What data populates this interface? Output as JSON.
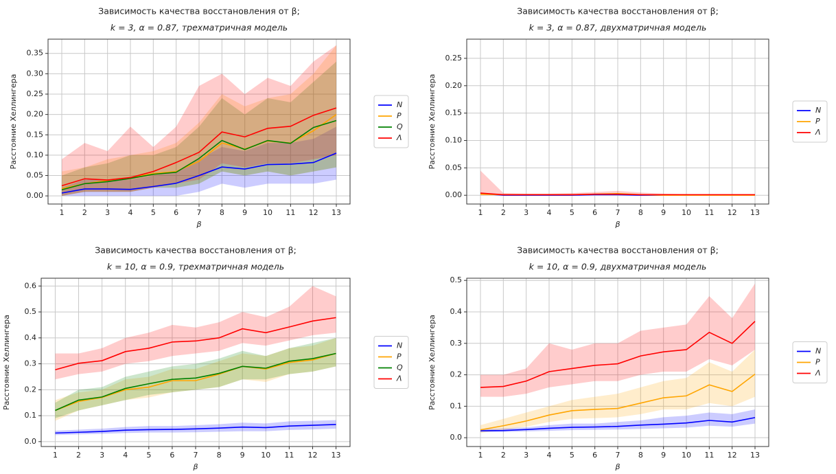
{
  "chart_data": [
    {
      "type": "line",
      "title": "Зависимость качества восстановления от β;",
      "subtitle": "k = 3, α = 0.87, трехматричная модель",
      "xlabel": "β",
      "ylabel": "Расстояние Хеллингера",
      "grid": true,
      "x": [
        1,
        2,
        3,
        4,
        5,
        6,
        7,
        8,
        9,
        10,
        11,
        12,
        13
      ],
      "xlim": [
        0.4,
        13.6
      ],
      "xticks": [
        1,
        2,
        3,
        4,
        5,
        6,
        7,
        8,
        9,
        10,
        11,
        12,
        13
      ],
      "ylim": [
        -0.02,
        0.385
      ],
      "yticks": [
        {
          "value": 0,
          "label": "0.00"
        },
        0.05,
        {
          "value": 0.1,
          "label": "0.10"
        },
        0.15,
        {
          "value": 0.2,
          "label": "0.20"
        },
        0.25,
        {
          "value": 0.3,
          "label": "0.30"
        },
        0.35
      ],
      "series": [
        {
          "name": "N",
          "color": "blue",
          "values": [
            0.007,
            0.017,
            0.017,
            0.016,
            0.023,
            0.031,
            0.05,
            0.071,
            0.066,
            0.077,
            0.078,
            0.082,
            0.105
          ],
          "lower": [
            0,
            0,
            0,
            0,
            0,
            0,
            0.01,
            0.03,
            0.02,
            0.03,
            0.03,
            0.03,
            0.04
          ],
          "upper": [
            0.02,
            0.04,
            0.04,
            0.04,
            0.05,
            0.06,
            0.09,
            0.12,
            0.11,
            0.13,
            0.13,
            0.14,
            0.17
          ]
        },
        {
          "name": "P",
          "color": "orange",
          "values": [
            0.018,
            0.03,
            0.038,
            0.045,
            0.055,
            0.06,
            0.085,
            0.13,
            0.115,
            0.135,
            0.13,
            0.16,
            0.2
          ],
          "lower": [
            0,
            0.01,
            0.01,
            0.01,
            0.02,
            0.02,
            0.03,
            0.06,
            0.05,
            0.06,
            0.05,
            0.06,
            0.07
          ],
          "upper": [
            0.06,
            0.07,
            0.09,
            0.1,
            0.11,
            0.13,
            0.18,
            0.25,
            0.22,
            0.24,
            0.25,
            0.3,
            0.37
          ]
        },
        {
          "name": "Q",
          "color": "green",
          "values": [
            0.015,
            0.03,
            0.035,
            0.043,
            0.053,
            0.058,
            0.092,
            0.136,
            0.114,
            0.136,
            0.129,
            0.168,
            0.185
          ],
          "lower": [
            0,
            0.01,
            0.01,
            0.01,
            0.02,
            0.02,
            0.03,
            0.06,
            0.05,
            0.06,
            0.05,
            0.06,
            0.07
          ],
          "upper": [
            0.05,
            0.07,
            0.08,
            0.1,
            0.1,
            0.12,
            0.17,
            0.24,
            0.2,
            0.24,
            0.23,
            0.28,
            0.33
          ]
        },
        {
          "name": "Λ",
          "color": "red",
          "values": [
            0.025,
            0.042,
            0.039,
            0.045,
            0.06,
            0.082,
            0.107,
            0.157,
            0.145,
            0.166,
            0.171,
            0.198,
            0.216
          ],
          "lower": [
            0,
            0.01,
            0.01,
            0.01,
            0.02,
            0.03,
            0.04,
            0.08,
            0.07,
            0.08,
            0.08,
            0.09,
            0.1
          ],
          "upper": [
            0.09,
            0.13,
            0.11,
            0.17,
            0.12,
            0.17,
            0.27,
            0.3,
            0.25,
            0.29,
            0.27,
            0.33,
            0.37
          ]
        }
      ]
    },
    {
      "type": "line",
      "title": "Зависимость качества восстановления от β;",
      "subtitle": "k = 3, α = 0.87, двухматричная модель",
      "xlabel": "β",
      "ylabel": "Расстояние Хеллингера",
      "grid": true,
      "x": [
        1,
        2,
        3,
        4,
        5,
        6,
        7,
        8,
        9,
        10,
        11,
        12,
        13
      ],
      "xlim": [
        0.4,
        13.6
      ],
      "xticks": [
        1,
        2,
        3,
        4,
        5,
        6,
        7,
        8,
        9,
        10,
        11,
        12,
        13
      ],
      "ylim": [
        -0.016,
        0.285
      ],
      "yticks": [
        {
          "value": 0,
          "label": "0.00"
        },
        0.05,
        {
          "value": 0.1,
          "label": "0.10"
        },
        0.15,
        {
          "value": 0.2,
          "label": "0.20"
        },
        0.25
      ],
      "series": [
        {
          "name": "N",
          "color": "blue",
          "values": [
            0.003,
            0,
            0,
            0,
            0,
            0.001,
            0.001,
            0,
            0,
            0,
            0,
            0,
            0
          ]
        },
        {
          "name": "P",
          "color": "orange",
          "values": [
            0.002,
            0.001,
            0.001,
            0.001,
            0.001,
            0.002,
            0.003,
            0.001,
            0,
            0,
            0,
            0,
            0
          ]
        },
        {
          "name": "Λ",
          "color": "red",
          "values": [
            0.004,
            0.001,
            0.001,
            0.001,
            0.001,
            0.002,
            0.002,
            0.001,
            0.001,
            0.001,
            0.001,
            0.001,
            0.001
          ],
          "lower": [
            0,
            0,
            0,
            0,
            0,
            0,
            0,
            0,
            0,
            0,
            0,
            0,
            0
          ],
          "upper": [
            0.045,
            0.004,
            0.003,
            0.003,
            0.004,
            0.006,
            0.008,
            0.005,
            0.003,
            0.002,
            0.002,
            0.002,
            0.002
          ]
        }
      ]
    },
    {
      "type": "line",
      "title": "Зависимость качества восстановления от β;",
      "subtitle": "k = 10, α = 0.9, трехматричная модель",
      "xlabel": "β",
      "ylabel": "Расстояние Хеллингера",
      "grid": true,
      "x": [
        1,
        2,
        3,
        4,
        5,
        6,
        7,
        8,
        9,
        10,
        11,
        12,
        13
      ],
      "xlim": [
        0.4,
        13.6
      ],
      "xticks": [
        1,
        2,
        3,
        4,
        5,
        6,
        7,
        8,
        9,
        10,
        11,
        12,
        13
      ],
      "ylim": [
        -0.019,
        0.63
      ],
      "yticks": [
        {
          "value": 0,
          "label": "0.0"
        },
        0.1,
        0.2,
        0.3,
        0.4,
        0.5,
        0.6
      ],
      "series": [
        {
          "name": "N",
          "color": "blue",
          "values": [
            0.033,
            0.036,
            0.039,
            0.044,
            0.046,
            0.047,
            0.049,
            0.052,
            0.056,
            0.054,
            0.06,
            0.063,
            0.066
          ],
          "lower": [
            0.025,
            0.028,
            0.03,
            0.033,
            0.035,
            0.035,
            0.036,
            0.038,
            0.04,
            0.04,
            0.045,
            0.047,
            0.05
          ],
          "upper": [
            0.042,
            0.046,
            0.05,
            0.056,
            0.06,
            0.06,
            0.063,
            0.067,
            0.073,
            0.07,
            0.078,
            0.08,
            0.083
          ]
        },
        {
          "name": "P",
          "color": "orange",
          "values": [
            0.12,
            0.155,
            0.17,
            0.2,
            0.21,
            0.235,
            0.235,
            0.26,
            0.29,
            0.28,
            0.305,
            0.315,
            0.34
          ],
          "lower": [
            0.08,
            0.12,
            0.14,
            0.16,
            0.17,
            0.19,
            0.2,
            0.21,
            0.24,
            0.23,
            0.26,
            0.27,
            0.29
          ],
          "upper": [
            0.16,
            0.19,
            0.2,
            0.24,
            0.25,
            0.28,
            0.28,
            0.31,
            0.34,
            0.33,
            0.36,
            0.37,
            0.4
          ]
        },
        {
          "name": "Q",
          "color": "green",
          "values": [
            0.12,
            0.16,
            0.172,
            0.205,
            0.223,
            0.24,
            0.245,
            0.263,
            0.29,
            0.283,
            0.31,
            0.32,
            0.34
          ],
          "lower": [
            0.09,
            0.12,
            0.14,
            0.16,
            0.18,
            0.19,
            0.2,
            0.21,
            0.24,
            0.24,
            0.26,
            0.27,
            0.29
          ],
          "upper": [
            0.15,
            0.2,
            0.21,
            0.25,
            0.27,
            0.29,
            0.3,
            0.32,
            0.35,
            0.33,
            0.36,
            0.38,
            0.4
          ]
        },
        {
          "name": "Λ",
          "color": "red",
          "values": [
            0.277,
            0.302,
            0.312,
            0.347,
            0.36,
            0.384,
            0.388,
            0.4,
            0.435,
            0.42,
            0.442,
            0.465,
            0.478
          ],
          "lower": [
            0.24,
            0.26,
            0.27,
            0.3,
            0.31,
            0.33,
            0.34,
            0.35,
            0.38,
            0.37,
            0.39,
            0.41,
            0.42
          ],
          "upper": [
            0.34,
            0.34,
            0.36,
            0.4,
            0.42,
            0.45,
            0.44,
            0.46,
            0.5,
            0.48,
            0.52,
            0.6,
            0.56
          ]
        }
      ]
    },
    {
      "type": "line",
      "title": "Зависимость качества восстановления от β;",
      "subtitle": "k = 10, α = 0.9, двухматричная модель",
      "xlabel": "β",
      "ylabel": "Расстояние Хеллингера",
      "grid": true,
      "x": [
        1,
        2,
        3,
        4,
        5,
        6,
        7,
        8,
        9,
        10,
        11,
        12,
        13
      ],
      "xlim": [
        0.4,
        13.6
      ],
      "xticks": [
        1,
        2,
        3,
        4,
        5,
        6,
        7,
        8,
        9,
        10,
        11,
        12,
        13
      ],
      "ylim": [
        -0.028,
        0.507
      ],
      "yticks": [
        {
          "value": 0,
          "label": "0.0"
        },
        0.1,
        0.2,
        0.3,
        0.4,
        0.5
      ],
      "series": [
        {
          "name": "N",
          "color": "blue",
          "values": [
            0.022,
            0.023,
            0.026,
            0.03,
            0.033,
            0.034,
            0.036,
            0.04,
            0.043,
            0.047,
            0.055,
            0.05,
            0.064
          ],
          "lower": [
            0.018,
            0.018,
            0.02,
            0.022,
            0.024,
            0.025,
            0.026,
            0.028,
            0.03,
            0.032,
            0.038,
            0.035,
            0.045
          ],
          "upper": [
            0.027,
            0.03,
            0.033,
            0.04,
            0.045,
            0.045,
            0.05,
            0.055,
            0.065,
            0.07,
            0.08,
            0.075,
            0.09
          ]
        },
        {
          "name": "P",
          "color": "orange",
          "values": [
            0.025,
            0.038,
            0.053,
            0.072,
            0.086,
            0.09,
            0.093,
            0.11,
            0.127,
            0.133,
            0.168,
            0.147,
            0.202
          ],
          "lower": [
            0.015,
            0.025,
            0.035,
            0.05,
            0.06,
            0.062,
            0.065,
            0.075,
            0.09,
            0.09,
            0.11,
            0.1,
            0.13
          ],
          "upper": [
            0.04,
            0.06,
            0.08,
            0.1,
            0.12,
            0.13,
            0.14,
            0.16,
            0.18,
            0.19,
            0.24,
            0.21,
            0.28
          ]
        },
        {
          "name": "Λ",
          "color": "red",
          "values": [
            0.16,
            0.163,
            0.18,
            0.21,
            0.22,
            0.23,
            0.235,
            0.26,
            0.273,
            0.28,
            0.335,
            0.3,
            0.37
          ],
          "lower": [
            0.13,
            0.13,
            0.14,
            0.16,
            0.17,
            0.18,
            0.18,
            0.2,
            0.21,
            0.21,
            0.25,
            0.23,
            0.28
          ],
          "upper": [
            0.2,
            0.2,
            0.22,
            0.3,
            0.28,
            0.3,
            0.3,
            0.34,
            0.35,
            0.36,
            0.45,
            0.38,
            0.49
          ]
        }
      ]
    }
  ]
}
